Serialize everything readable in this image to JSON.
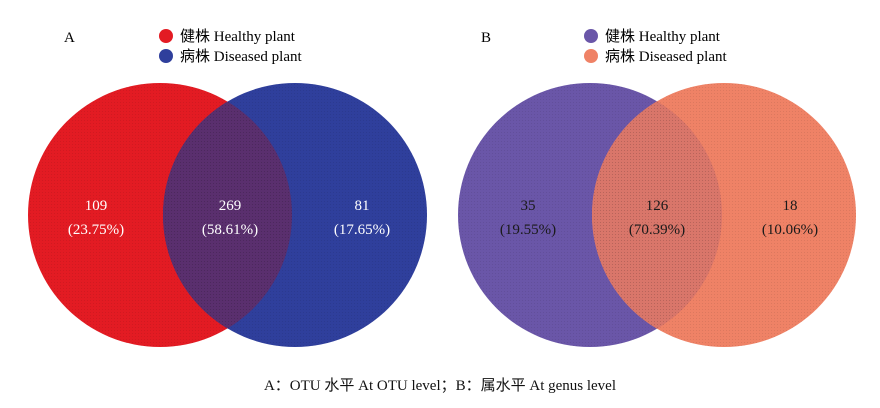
{
  "panels": [
    {
      "label": "A",
      "legend": [
        {
          "text": "健株 Healthy plant",
          "color": "#e31b23"
        },
        {
          "text": "病株 Diseased plant",
          "color": "#2f3f9c"
        }
      ],
      "regions": {
        "left": {
          "count": "109",
          "percent": "(23.75%)"
        },
        "overlap": {
          "count": "269",
          "percent": "(58.61%)"
        },
        "right": {
          "count": "81",
          "percent": "(17.65%)"
        }
      },
      "colors": {
        "left": "#e31b23",
        "right": "#2f3f9c",
        "overlap": "#5a2f6e"
      }
    },
    {
      "label": "B",
      "legend": [
        {
          "text": "健株 Healthy plant",
          "color": "#6a56a8"
        },
        {
          "text": "病株 Diseased plant",
          "color": "#ef8266"
        }
      ],
      "regions": {
        "left": {
          "count": "35",
          "percent": "(19.55%)"
        },
        "overlap": {
          "count": "126",
          "percent": "(70.39%)"
        },
        "right": {
          "count": "18",
          "percent": "(10.06%)"
        }
      },
      "colors": {
        "left": "#6a56a8",
        "right": "#ef8266",
        "overlap": "#d9766a"
      }
    }
  ],
  "caption": "A：OTU 水平 At OTU level；B：属水平 At genus level"
}
